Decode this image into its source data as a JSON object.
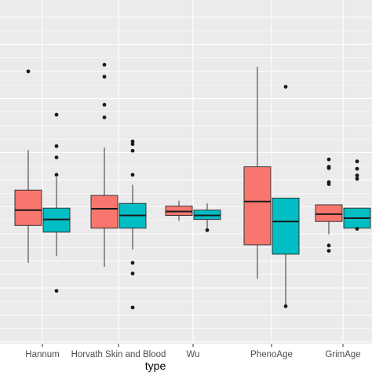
{
  "chart_data": {
    "type": "box",
    "xlabel": "type",
    "ylabel": "",
    "categories": [
      "Hannum",
      "Horvath Skin and Blood",
      "Wu",
      "PhenoAge",
      "GrimAge"
    ],
    "series": [
      {
        "color": "#F8766D",
        "boxes": [
          {
            "lower_whisker": 4.6,
            "q1": 10.2,
            "median": 12.5,
            "q3": 15.5,
            "upper_whisker": 21.5,
            "outliers": [
              33.3
            ]
          },
          {
            "lower_whisker": 4.0,
            "q1": 9.8,
            "median": 12.7,
            "q3": 14.7,
            "upper_whisker": 21.9,
            "outliers": [
              26.4,
              28.3,
              32.5,
              34.3
            ]
          },
          {
            "lower_whisker": 10.9,
            "q1": 11.7,
            "median": 12.3,
            "q3": 13.1,
            "upper_whisker": 13.9,
            "outliers": []
          },
          {
            "lower_whisker": 2.2,
            "q1": 7.3,
            "median": 13.8,
            "q3": 19.0,
            "upper_whisker": 34.0,
            "outliers": []
          },
          {
            "lower_whisker": 8.9,
            "q1": 10.8,
            "median": 11.9,
            "q3": 13.3,
            "upper_whisker": 13.3,
            "outliers": [
              6.4,
              7.2,
              16.4,
              16.7,
              18.8,
              19.0,
              20.1
            ]
          }
        ]
      },
      {
        "color": "#00BFC4",
        "boxes": [
          {
            "lower_whisker": 5.6,
            "q1": 9.2,
            "median": 11.1,
            "q3": 12.8,
            "upper_whisker": 17.4,
            "outliers": [
              0.4,
              17.8,
              20.4,
              22.1,
              26.8
            ]
          },
          {
            "lower_whisker": 6.6,
            "q1": 9.8,
            "median": 11.7,
            "q3": 13.5,
            "upper_whisker": 16.3,
            "outliers": [
              -2.1,
              3.0,
              4.6,
              17.8,
              21.4,
              22.4,
              22.8
            ]
          },
          {
            "lower_whisker": 9.7,
            "q1": 11.1,
            "median": 11.7,
            "q3": 12.5,
            "upper_whisker": 13.5,
            "outliers": [
              9.5
            ]
          },
          {
            "lower_whisker": -1.9,
            "q1": 5.9,
            "median": 10.8,
            "q3": 14.3,
            "upper_whisker": 14.3,
            "outliers": [
              -1.9,
              31.0
            ]
          },
          {
            "lower_whisker": 9.8,
            "q1": 9.8,
            "median": 11.3,
            "q3": 12.8,
            "upper_whisker": 12.8,
            "outliers": [
              9.7,
              17.2,
              17.7,
              18.7,
              19.8
            ]
          }
        ]
      }
    ],
    "grid": true,
    "legend": "none",
    "background": "#EBEBEB"
  }
}
